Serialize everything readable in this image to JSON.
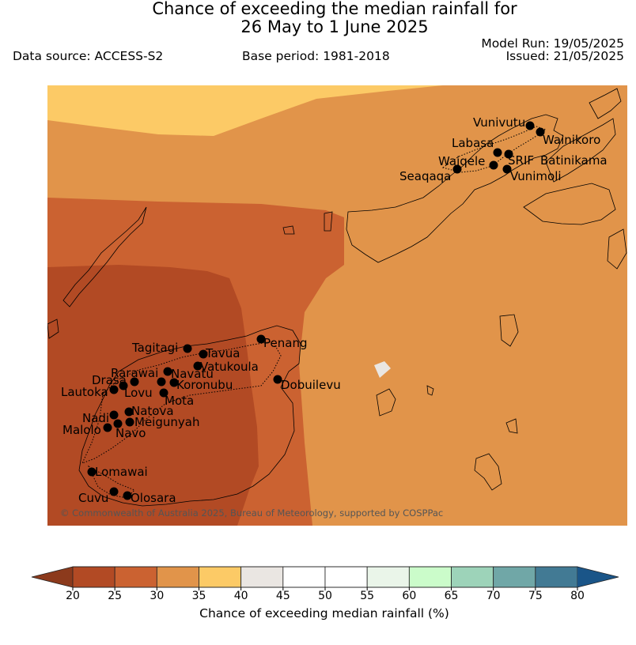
{
  "header": {
    "title_line1": "Chance of exceeding the median rainfall for",
    "title_line2": "26 May to 1 June 2025",
    "data_source": "Data source: ACCESS-S2",
    "base_period": "Base period: 1981-2018",
    "model_run": "Model Run: 19/05/2025",
    "issued": "Issued: 21/05/2025"
  },
  "map": {
    "credit": "© Commonwealth of Australia 2025, Bureau of Meteorology, supported by COSPPac",
    "locations": [
      {
        "name": "Vunivutu"
      },
      {
        "name": "Wainikoro"
      },
      {
        "name": "Labasa"
      },
      {
        "name": "SRIF"
      },
      {
        "name": "Batinikama"
      },
      {
        "name": "Waiqele"
      },
      {
        "name": "Seaqaqa"
      },
      {
        "name": "Vunimoli"
      },
      {
        "name": "Penang"
      },
      {
        "name": "Tagitagi"
      },
      {
        "name": "Tavua"
      },
      {
        "name": "Vatukoula"
      },
      {
        "name": "Rarawai"
      },
      {
        "name": "Navatu"
      },
      {
        "name": "Koronubu"
      },
      {
        "name": "Drasa"
      },
      {
        "name": "Lovu"
      },
      {
        "name": "Lautoka"
      },
      {
        "name": "Mota"
      },
      {
        "name": "Dobuilevu"
      },
      {
        "name": "Nadi"
      },
      {
        "name": "Natova"
      },
      {
        "name": "Meigunyah"
      },
      {
        "name": "Malolo"
      },
      {
        "name": "Navo"
      },
      {
        "name": "Lomawai"
      },
      {
        "name": "Cuvu"
      },
      {
        "name": "Olosara"
      }
    ]
  },
  "colorbar": {
    "label": "Chance of exceeding median rainfall (%)",
    "ticks": [
      "20",
      "25",
      "30",
      "35",
      "40",
      "45",
      "50",
      "55",
      "60",
      "65",
      "70",
      "75",
      "80"
    ],
    "colors": [
      "#b24a24",
      "#cb6231",
      "#e1944a",
      "#fcca66",
      "#eae6e2",
      "#ffffff",
      "#ffffff",
      "#eaf5e9",
      "#cbfcca",
      "#9dd3b9",
      "#70a7a7",
      "#427a94"
    ],
    "under_color": "#8c3a1c",
    "over_color": "#1a5588"
  }
}
